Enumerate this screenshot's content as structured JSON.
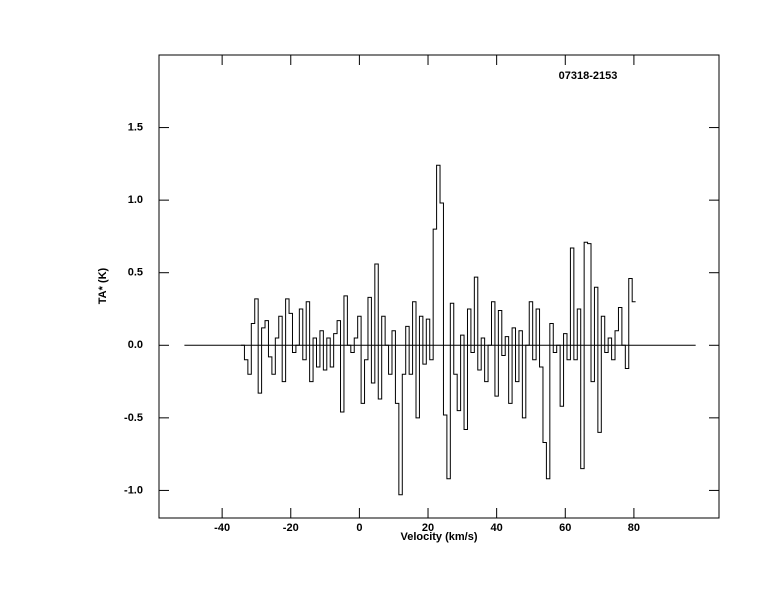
{
  "chart_data": {
    "type": "step",
    "title": "07318-2153",
    "xlabel": "Velocity (km/s)",
    "ylabel": "TA* (K)",
    "x": [
      -34,
      -33,
      -32,
      -31,
      -30,
      -29,
      -28,
      -27,
      -26,
      -25,
      -24,
      -23,
      -22,
      -21,
      -20,
      -19,
      -18,
      -17,
      -16,
      -15,
      -14,
      -13,
      -12,
      -11,
      -10,
      -9,
      -8,
      -7,
      -6,
      -5,
      -4,
      -3,
      -2,
      -1,
      0,
      1,
      2,
      3,
      4,
      5,
      6,
      7,
      8,
      9,
      10,
      11,
      12,
      13,
      14,
      15,
      16,
      17,
      18,
      19,
      20,
      21,
      22,
      23,
      24,
      25,
      26,
      27,
      28,
      29,
      30,
      31,
      32,
      33,
      34,
      35,
      36,
      37,
      38,
      39,
      40,
      41,
      42,
      43,
      44,
      45,
      46,
      47,
      48,
      49,
      50,
      51,
      52,
      53,
      54,
      55,
      56,
      57,
      58,
      59,
      60,
      61,
      62,
      63,
      64,
      65,
      66,
      67,
      68,
      69,
      70,
      71,
      72,
      73,
      74,
      75,
      76,
      77,
      78,
      79,
      80
    ],
    "values": [
      0.0,
      -0.1,
      -0.2,
      0.15,
      0.32,
      -0.33,
      0.12,
      0.17,
      -0.08,
      -0.2,
      0.05,
      0.2,
      -0.25,
      0.32,
      0.22,
      -0.05,
      0.0,
      0.25,
      -0.1,
      0.3,
      -0.25,
      0.05,
      -0.15,
      0.1,
      -0.17,
      0.05,
      -0.15,
      0.08,
      0.17,
      -0.46,
      0.34,
      0.0,
      -0.05,
      0.05,
      0.2,
      -0.4,
      -0.1,
      0.33,
      -0.26,
      0.56,
      -0.37,
      0.2,
      0.0,
      -0.2,
      0.1,
      -0.4,
      -1.03,
      -0.2,
      0.13,
      -0.2,
      0.3,
      -0.5,
      0.2,
      -0.13,
      0.18,
      -0.1,
      0.8,
      1.24,
      0.98,
      -0.48,
      -0.92,
      0.29,
      -0.2,
      -0.45,
      0.07,
      -0.58,
      0.25,
      -0.05,
      0.47,
      -0.17,
      0.05,
      -0.25,
      0.0,
      0.3,
      -0.35,
      0.24,
      -0.07,
      0.06,
      -0.4,
      0.12,
      -0.25,
      0.1,
      -0.5,
      0.0,
      0.3,
      -0.1,
      0.25,
      -0.15,
      -0.67,
      -0.92,
      0.15,
      -0.05,
      0.0,
      -0.42,
      0.08,
      -0.1,
      0.67,
      -0.1,
      0.25,
      -0.85,
      0.71,
      0.7,
      -0.25,
      0.4,
      -0.6,
      0.2,
      -0.05,
      0.05,
      -0.1,
      0.1,
      0.26,
      0.0,
      -0.16,
      0.46,
      0.3
    ],
    "color": "#000000",
    "zero_line": {
      "x": [
        -51,
        98
      ],
      "y": [
        0,
        0
      ]
    },
    "xlim": [
      -58.4,
      104.8
    ],
    "ylim": [
      -1.19,
      2.0
    ],
    "xticks": [
      -40,
      -20,
      0,
      20,
      40,
      60,
      80
    ],
    "yticks": [
      {
        "value": -1.0,
        "label": "-1.0"
      },
      -0.5,
      {
        "value": 0.0,
        "label": "0.0"
      },
      0.5,
      {
        "value": 1.0,
        "label": "1.0"
      },
      1.5
    ]
  }
}
